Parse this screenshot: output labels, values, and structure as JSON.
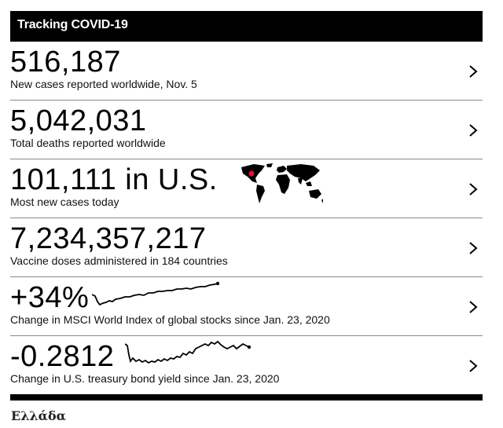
{
  "widget": {
    "title": "Tracking COVID-19",
    "rows": [
      {
        "value": "516,187",
        "caption": "New cases reported worldwide, Nov. 5",
        "icon": "chevron-right-icon"
      },
      {
        "value": "5,042,031",
        "caption": "Total deaths reported worldwide",
        "icon": "chevron-right-icon"
      },
      {
        "value": "101,111 in U.S.",
        "caption": "Most new cases today",
        "icon": "chevron-right-icon",
        "graphic": "world-map-icon",
        "highlight_color": "#e8112d"
      },
      {
        "value": "7,234,357,217",
        "caption": "Vaccine doses administered in 184 countries",
        "icon": "chevron-right-icon"
      },
      {
        "value": "+34%",
        "caption": "Change in MSCI World Index of global stocks since Jan. 23, 2020",
        "icon": "chevron-right-icon",
        "graphic": "sparkline"
      },
      {
        "value": "-0.2812",
        "caption": "Change in U.S. treasury bond yield since Jan. 23, 2020",
        "icon": "chevron-right-icon",
        "graphic": "sparkline"
      }
    ]
  },
  "footer": {
    "language_label": "Ελλάδα"
  },
  "colors": {
    "header_bg": "#000000",
    "header_text": "#ffffff",
    "divider": "#8a8a8a",
    "map_highlight": "#e8112d"
  }
}
